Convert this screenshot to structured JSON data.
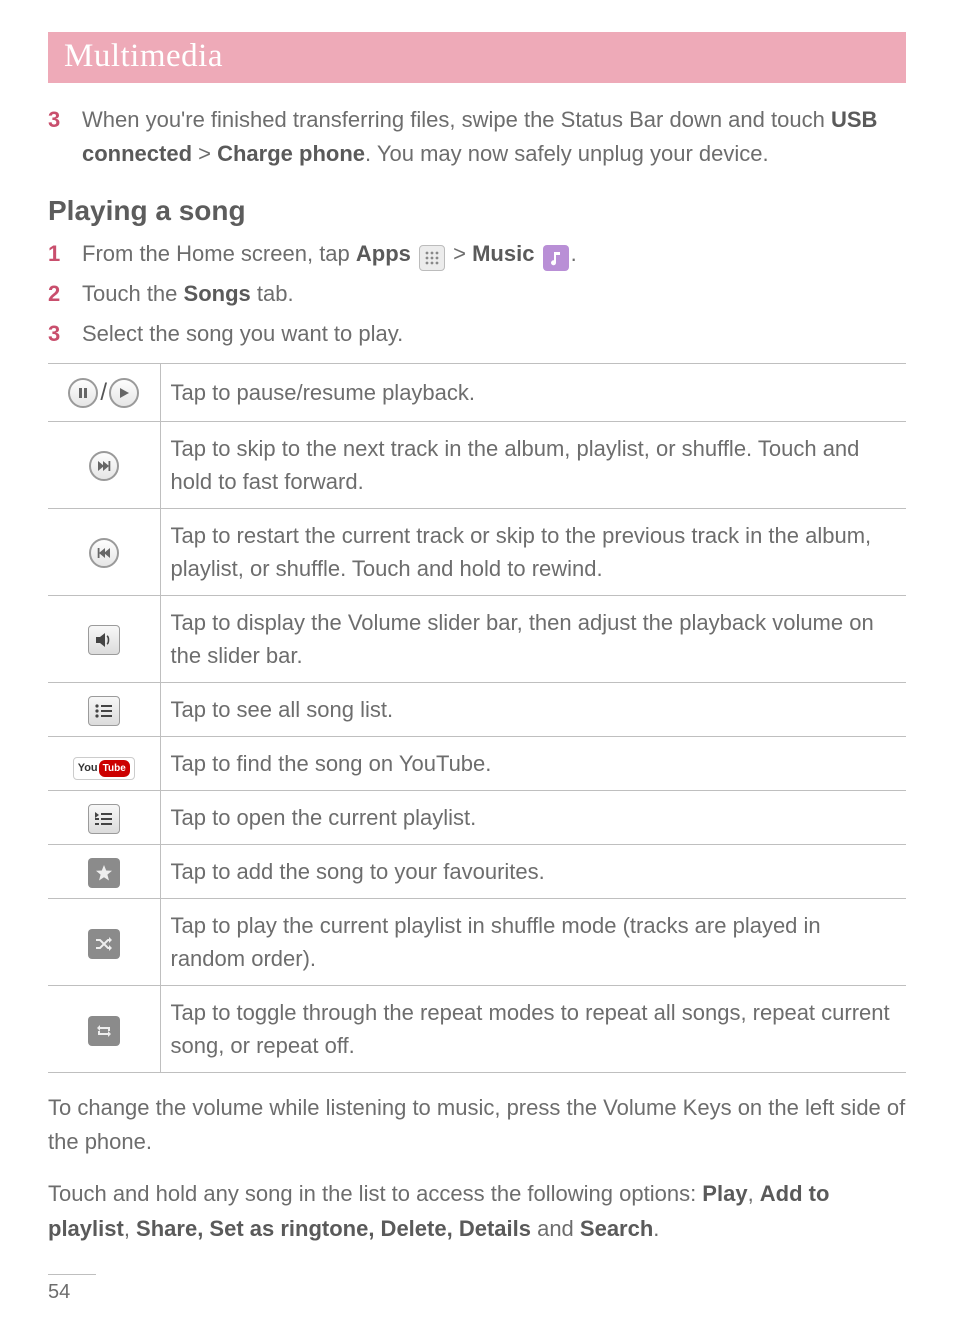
{
  "banner_title": "Multimedia",
  "pre_steps": [
    {
      "num": "3",
      "html": "When you're finished transferring files, swipe the Status Bar down and touch <b>USB connected</b> > <b>Charge phone</b>. You may now safely unplug your device."
    }
  ],
  "subhead": "Playing a song",
  "steps": [
    {
      "num": "1",
      "html": "From the Home screen, tap <b>Apps</b> {APPS_ICON} > <b>Music</b> {MUSIC_ICON}."
    },
    {
      "num": "2",
      "html": "Touch the <b>Songs</b> tab."
    },
    {
      "num": "3",
      "html": "Select the song you want to play."
    }
  ],
  "controls": [
    {
      "icon": "pause-play",
      "desc": "Tap to pause/resume playback."
    },
    {
      "icon": "next",
      "desc": "Tap to skip to the next track in the album, playlist, or shuffle. Touch and hold to fast forward."
    },
    {
      "icon": "prev",
      "desc": "Tap to restart the current track or skip to the previous track in the album, playlist, or shuffle. Touch and hold to rewind."
    },
    {
      "icon": "volume",
      "desc": "Tap to display the Volume slider bar, then adjust the playback volume on the slider bar."
    },
    {
      "icon": "songlist",
      "desc": "Tap to see all song list."
    },
    {
      "icon": "youtube",
      "desc": "Tap to find the song on YouTube."
    },
    {
      "icon": "playlist",
      "desc": "Tap to open the current playlist."
    },
    {
      "icon": "favourite",
      "desc": "Tap to add the song to your favourites."
    },
    {
      "icon": "shuffle",
      "desc": "Tap to play the current playlist in shuffle mode (tracks are played in random order)."
    },
    {
      "icon": "repeat",
      "desc": "Tap to toggle through the repeat modes to repeat all songs, repeat current song, or repeat off."
    }
  ],
  "volume_note": "To change the volume while listening to music, press the Volume Keys on the left side of the phone.",
  "hold_note_html": "Touch and hold any song in the list to access the following options: <b>Play</b>, <b>Add to playlist</b>, <b>Share, Set as ringtone, Delete, Details</b> and <b>Search</b>.",
  "page_number": "54",
  "colors": {
    "banner_bg": "#eeaab8",
    "banner_fg": "#ffffff",
    "accent": "#c94f6d",
    "text": "#6d6d6d",
    "rule": "#bfbfbf"
  }
}
